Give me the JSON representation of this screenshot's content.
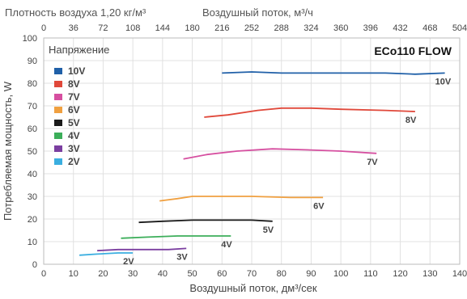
{
  "chart_data": {
    "type": "line",
    "top_title": "Плотность воздуха 1,20 кг/м³",
    "top_axis_label": "Воздушный поток, м³/ч",
    "top_ticks": [
      0,
      36,
      72,
      108,
      144,
      180,
      216,
      252,
      288,
      324,
      360,
      396,
      432,
      468,
      504
    ],
    "xlabel": "Воздушный поток, дм³/сек",
    "ylabel": "Потребляемая мощность, W",
    "xlim": [
      0,
      140
    ],
    "ylim": [
      0,
      100
    ],
    "x_ticks": [
      0,
      10,
      20,
      30,
      40,
      50,
      60,
      70,
      80,
      90,
      100,
      110,
      120,
      130,
      140
    ],
    "y_ticks": [
      0,
      10,
      20,
      30,
      40,
      50,
      60,
      70,
      80,
      90,
      100
    ],
    "grid": true,
    "legend_title": "Напряжение",
    "legend_placement": "top-left",
    "model": "ECo110 FLOW",
    "series": [
      {
        "name": "10V",
        "color": "#2060a8",
        "label": "10V",
        "points": [
          [
            60,
            84.5
          ],
          [
            70,
            85
          ],
          [
            80,
            84.5
          ],
          [
            100,
            84.5
          ],
          [
            115,
            84.5
          ],
          [
            125,
            84
          ],
          [
            135,
            84.5
          ]
        ]
      },
      {
        "name": "8V",
        "color": "#e0483a",
        "label": "8V",
        "points": [
          [
            54,
            65
          ],
          [
            62,
            66
          ],
          [
            72,
            68
          ],
          [
            80,
            69
          ],
          [
            90,
            69
          ],
          [
            100,
            68.5
          ],
          [
            115,
            68
          ],
          [
            125,
            67.5
          ]
        ]
      },
      {
        "name": "7V",
        "color": "#d64fa0",
        "label": "7V",
        "points": [
          [
            47,
            46.5
          ],
          [
            55,
            48.5
          ],
          [
            65,
            50
          ],
          [
            77,
            51
          ],
          [
            90,
            50.5
          ],
          [
            100,
            50
          ],
          [
            112,
            49
          ]
        ]
      },
      {
        "name": "6V",
        "color": "#f0a040",
        "label": "6V",
        "points": [
          [
            39,
            28
          ],
          [
            45,
            29
          ],
          [
            50,
            30
          ],
          [
            60,
            30
          ],
          [
            70,
            30
          ],
          [
            83,
            29.5
          ],
          [
            94,
            29.5
          ]
        ]
      },
      {
        "name": "5V",
        "color": "#1a1a1a",
        "label": "5V",
        "points": [
          [
            32,
            18.5
          ],
          [
            40,
            19
          ],
          [
            50,
            19.5
          ],
          [
            60,
            19.5
          ],
          [
            70,
            19.5
          ],
          [
            77,
            19
          ]
        ]
      },
      {
        "name": "4V",
        "color": "#3cae5a",
        "label": "4V",
        "points": [
          [
            26,
            11.5
          ],
          [
            35,
            12
          ],
          [
            45,
            12.5
          ],
          [
            55,
            12.5
          ],
          [
            63,
            12.5
          ]
        ]
      },
      {
        "name": "3V",
        "color": "#7b3fa0",
        "label": "3V",
        "points": [
          [
            18,
            6
          ],
          [
            25,
            6.5
          ],
          [
            35,
            6.5
          ],
          [
            42,
            6.5
          ],
          [
            48,
            7
          ]
        ]
      },
      {
        "name": "2V",
        "color": "#3aaee0",
        "label": "2V",
        "points": [
          [
            12,
            4
          ],
          [
            18,
            4.5
          ],
          [
            25,
            5
          ],
          [
            30,
            5
          ]
        ]
      }
    ]
  }
}
